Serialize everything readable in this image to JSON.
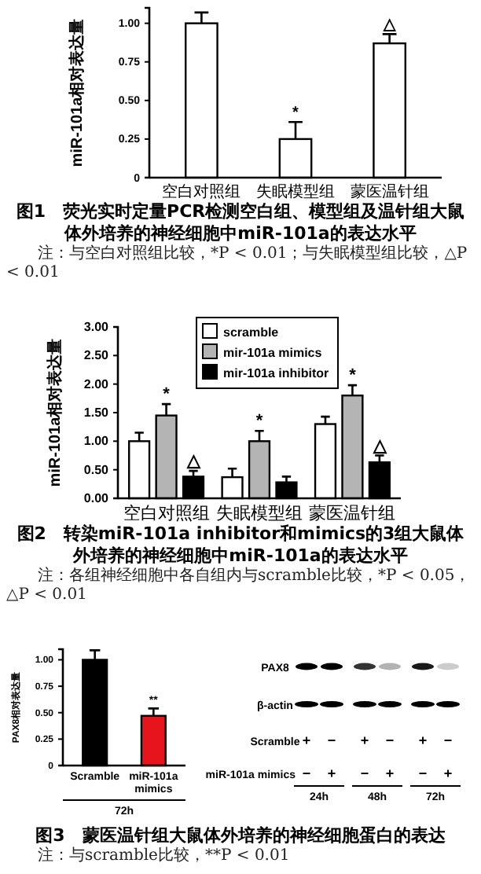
{
  "chart_data": [
    {
      "type": "bar",
      "title": "图1　荧光实时定量PCR检测空白组、模型组及温针组大鼠体外培养的神经细胞中miR-101a的表达水平",
      "ylabel": "miR-101a相对表达量",
      "categories": [
        "空白对照组",
        "失眠模型组",
        "蒙医温针组"
      ],
      "series": [
        {
          "color": "#ffffff",
          "values": [
            1.0,
            0.25,
            0.87
          ],
          "errors": [
            0.07,
            0.11,
            0.06
          ],
          "value_labels": [
            null,
            "*",
            "△"
          ]
        }
      ],
      "ylim": [
        0,
        1.1
      ],
      "yticks": [
        0,
        0.25,
        {
          "value": 0.5,
          "label": "0.50"
        },
        0.75,
        {
          "value": 1,
          "label": "1.00"
        }
      ],
      "annotations": [
        "注：与空白对照组比较，*P < 0.01；与失眠模型组比较，△P < 0.01"
      ]
    },
    {
      "type": "bar",
      "title": "图2　转染miR-101a inhibitor和mimics的3组大鼠体外培养的神经细胞中miR-101a的表达水平",
      "ylabel": "miR-101a相对表达量",
      "categories": [
        "空白对照组",
        "失眠模型组",
        "蒙医温针组"
      ],
      "series": [
        {
          "name": "scramble",
          "color": "#ffffff",
          "values": [
            1.0,
            0.37,
            1.3
          ],
          "errors": [
            0.15,
            0.15,
            0.13
          ]
        },
        {
          "name": "mir-101a mimics",
          "color": "#b4b4b4",
          "values": [
            1.45,
            1.0,
            1.8
          ],
          "errors": [
            0.2,
            0.18,
            0.18
          ],
          "value_labels": [
            "*",
            "*",
            "*"
          ]
        },
        {
          "name": "mir-101a inhibitor",
          "color": "#000000",
          "values": [
            0.38,
            0.28,
            0.63
          ],
          "errors": [
            0.1,
            0.1,
            0.12
          ],
          "value_labels": [
            "△",
            null,
            "△"
          ]
        }
      ],
      "ylim": [
        0,
        3
      ],
      "yticks": [
        {
          "value": 0,
          "label": "0.00"
        },
        {
          "value": 0.5,
          "label": "0.50"
        },
        {
          "value": 1,
          "label": "1.00"
        },
        {
          "value": 1.5,
          "label": "1.50"
        },
        {
          "value": 2,
          "label": "2.00"
        },
        {
          "value": 2.5,
          "label": "2.50"
        },
        {
          "value": 3,
          "label": "3.00"
        }
      ],
      "legend": "top right",
      "annotations": [
        "注：各组神经细胞中各自组内与scramble比较，*P < 0.05，△P < 0.01"
      ]
    },
    {
      "type": "bar",
      "title": "图3　蒙医温针组大鼠体外培养的神经细胞蛋白的表达",
      "ylabel": "PAX8相对表达量",
      "xlabel": "72h",
      "categories": [
        "Scramble",
        "miR-101a mimics"
      ],
      "series": [
        {
          "colors": [
            "#000000",
            "#e8141c"
          ],
          "values": [
            1.0,
            0.47
          ],
          "errors": [
            0.09,
            0.07
          ],
          "value_labels": [
            null,
            "**"
          ]
        }
      ],
      "ylim": [
        0,
        1.1
      ],
      "yticks": [
        0,
        0.25,
        {
          "value": 0.5,
          "label": "0.50"
        },
        0.75,
        {
          "value": 1,
          "label": "1.00"
        }
      ],
      "annotations": [
        "注：与scramble比较，**P < 0.01"
      ]
    },
    {
      "type": "other",
      "annotations": [
        "PAX8",
        "β-actin",
        "Scramble",
        "miR-101a mimics",
        "+",
        "−",
        "+",
        "−",
        "+",
        "−",
        "−",
        "+",
        "−",
        "+",
        "−",
        "+",
        "24h",
        "48h",
        "72h"
      ]
    }
  ]
}
